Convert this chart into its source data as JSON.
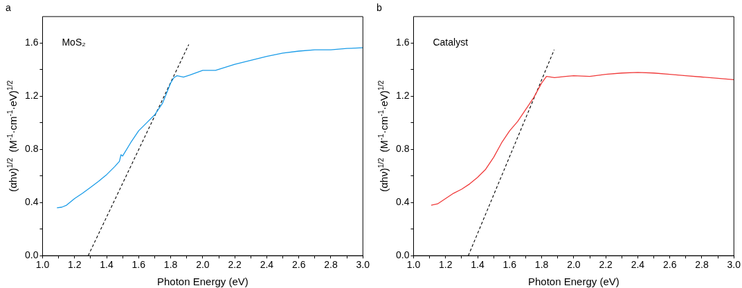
{
  "chart_data": [
    {
      "type": "line",
      "title": "a",
      "xlabel": "Photon Energy (eV)",
      "ylabel": "(αhν)$^{1/2}$  (M$^{-1}$·cm$^{-1}$·eV)$^{1/2}$",
      "annotations": [
        "MoS₂"
      ],
      "marker": "none",
      "legend": false,
      "grid": false,
      "xlim": [
        1.0,
        3.0
      ],
      "xticks": [
        {
          "value": 1.0,
          "label": "1.0"
        },
        {
          "value": 1.1,
          "label": null
        },
        {
          "value": 1.2,
          "label": "1.2"
        },
        {
          "value": 1.3,
          "label": null
        },
        {
          "value": 1.4,
          "label": "1.4"
        },
        {
          "value": 1.5,
          "label": null
        },
        {
          "value": 1.6,
          "label": "1.6"
        },
        {
          "value": 1.7,
          "label": null
        },
        {
          "value": 1.8,
          "label": "1.8"
        },
        {
          "value": 1.9,
          "label": null
        },
        {
          "value": 2.0,
          "label": "2.0"
        },
        {
          "value": 2.1,
          "label": null
        },
        {
          "value": 2.2,
          "label": "2.2"
        },
        {
          "value": 2.3,
          "label": null
        },
        {
          "value": 2.4,
          "label": "2.4"
        },
        {
          "value": 2.5,
          "label": null
        },
        {
          "value": 2.6,
          "label": "2.6"
        },
        {
          "value": 2.7,
          "label": null
        },
        {
          "value": 2.8,
          "label": "2.8"
        },
        {
          "value": 2.9,
          "label": null
        },
        {
          "value": 3.0,
          "label": "3.0"
        }
      ],
      "ylim": [
        0,
        1.8
      ],
      "yticks": [
        {
          "value": 0,
          "label": "0.0"
        },
        {
          "value": 0.2,
          "label": null
        },
        {
          "value": 0.4,
          "label": "0.4"
        },
        {
          "value": 0.6,
          "label": null
        },
        {
          "value": 0.8,
          "label": "0.8"
        },
        {
          "value": 1.0,
          "label": null
        },
        {
          "value": 1.2,
          "label": "1.2"
        },
        {
          "value": 1.4,
          "label": null
        },
        {
          "value": 1.6,
          "label": "1.6"
        }
      ],
      "series": [
        {
          "color": "#1a9ce8",
          "x": [
            1.09,
            1.12,
            1.15,
            1.2,
            1.25,
            1.3,
            1.35,
            1.4,
            1.45,
            1.48,
            1.49,
            1.5,
            1.55,
            1.6,
            1.65,
            1.7,
            1.75,
            1.8,
            1.82,
            1.84,
            1.88,
            1.92,
            2.0,
            2.08,
            2.2,
            2.3,
            2.4,
            2.5,
            2.6,
            2.7,
            2.8,
            2.9,
            3.0
          ],
          "values": [
            0.36,
            0.365,
            0.38,
            0.43,
            0.47,
            0.515,
            0.56,
            0.61,
            0.67,
            0.71,
            0.76,
            0.75,
            0.85,
            0.94,
            1.0,
            1.06,
            1.15,
            1.3,
            1.34,
            1.355,
            1.345,
            1.36,
            1.395,
            1.395,
            1.44,
            1.47,
            1.5,
            1.525,
            1.54,
            1.55,
            1.55,
            1.56,
            1.565
          ]
        },
        {
          "color": "#000000",
          "line_style": "dashed",
          "x": [
            1.285,
            1.913
          ],
          "values": [
            0,
            1.59
          ]
        }
      ]
    },
    {
      "type": "line",
      "title": "b",
      "xlabel": "Photon Energy (eV)",
      "ylabel": "(αhν)$^{1/2}$  (M$^{-1}$·cm$^{-1}$·eV)$^{1/2}$",
      "annotations": [
        "Catalyst"
      ],
      "marker": "none",
      "legend": false,
      "grid": false,
      "xlim": [
        1.0,
        3.0
      ],
      "xticks": [
        {
          "value": 1.0,
          "label": "1.0"
        },
        {
          "value": 1.1,
          "label": null
        },
        {
          "value": 1.2,
          "label": "1.2"
        },
        {
          "value": 1.3,
          "label": null
        },
        {
          "value": 1.4,
          "label": "1.4"
        },
        {
          "value": 1.5,
          "label": null
        },
        {
          "value": 1.6,
          "label": "1.6"
        },
        {
          "value": 1.7,
          "label": null
        },
        {
          "value": 1.8,
          "label": "1.8"
        },
        {
          "value": 1.9,
          "label": null
        },
        {
          "value": 2.0,
          "label": "2.0"
        },
        {
          "value": 2.1,
          "label": null
        },
        {
          "value": 2.2,
          "label": "2.2"
        },
        {
          "value": 2.3,
          "label": null
        },
        {
          "value": 2.4,
          "label": "2.4"
        },
        {
          "value": 2.5,
          "label": null
        },
        {
          "value": 2.6,
          "label": "2.6"
        },
        {
          "value": 2.7,
          "label": null
        },
        {
          "value": 2.8,
          "label": "2.8"
        },
        {
          "value": 2.9,
          "label": null
        },
        {
          "value": 3.0,
          "label": "3.0"
        }
      ],
      "ylim": [
        0,
        1.8
      ],
      "yticks": [
        {
          "value": 0,
          "label": "0.0"
        },
        {
          "value": 0.2,
          "label": null
        },
        {
          "value": 0.4,
          "label": "0.4"
        },
        {
          "value": 0.6,
          "label": null
        },
        {
          "value": 0.8,
          "label": "0.8"
        },
        {
          "value": 1.0,
          "label": null
        },
        {
          "value": 1.2,
          "label": "1.2"
        },
        {
          "value": 1.4,
          "label": null
        },
        {
          "value": 1.6,
          "label": "1.6"
        }
      ],
      "series": [
        {
          "color": "#f03a3a",
          "x": [
            1.11,
            1.15,
            1.2,
            1.25,
            1.3,
            1.35,
            1.4,
            1.45,
            1.5,
            1.55,
            1.6,
            1.65,
            1.7,
            1.75,
            1.8,
            1.83,
            1.88,
            1.95,
            2.0,
            2.1,
            2.2,
            2.3,
            2.4,
            2.5,
            2.6,
            2.7,
            2.8,
            2.9,
            3.0
          ],
          "values": [
            0.38,
            0.39,
            0.43,
            0.47,
            0.5,
            0.54,
            0.59,
            0.65,
            0.74,
            0.85,
            0.94,
            1.01,
            1.1,
            1.19,
            1.3,
            1.35,
            1.34,
            1.35,
            1.355,
            1.35,
            1.365,
            1.375,
            1.38,
            1.375,
            1.365,
            1.355,
            1.345,
            1.335,
            1.325
          ]
        },
        {
          "color": "#000000",
          "line_style": "dashed",
          "x": [
            1.342,
            1.878
          ],
          "values": [
            0,
            1.55
          ]
        }
      ]
    }
  ]
}
